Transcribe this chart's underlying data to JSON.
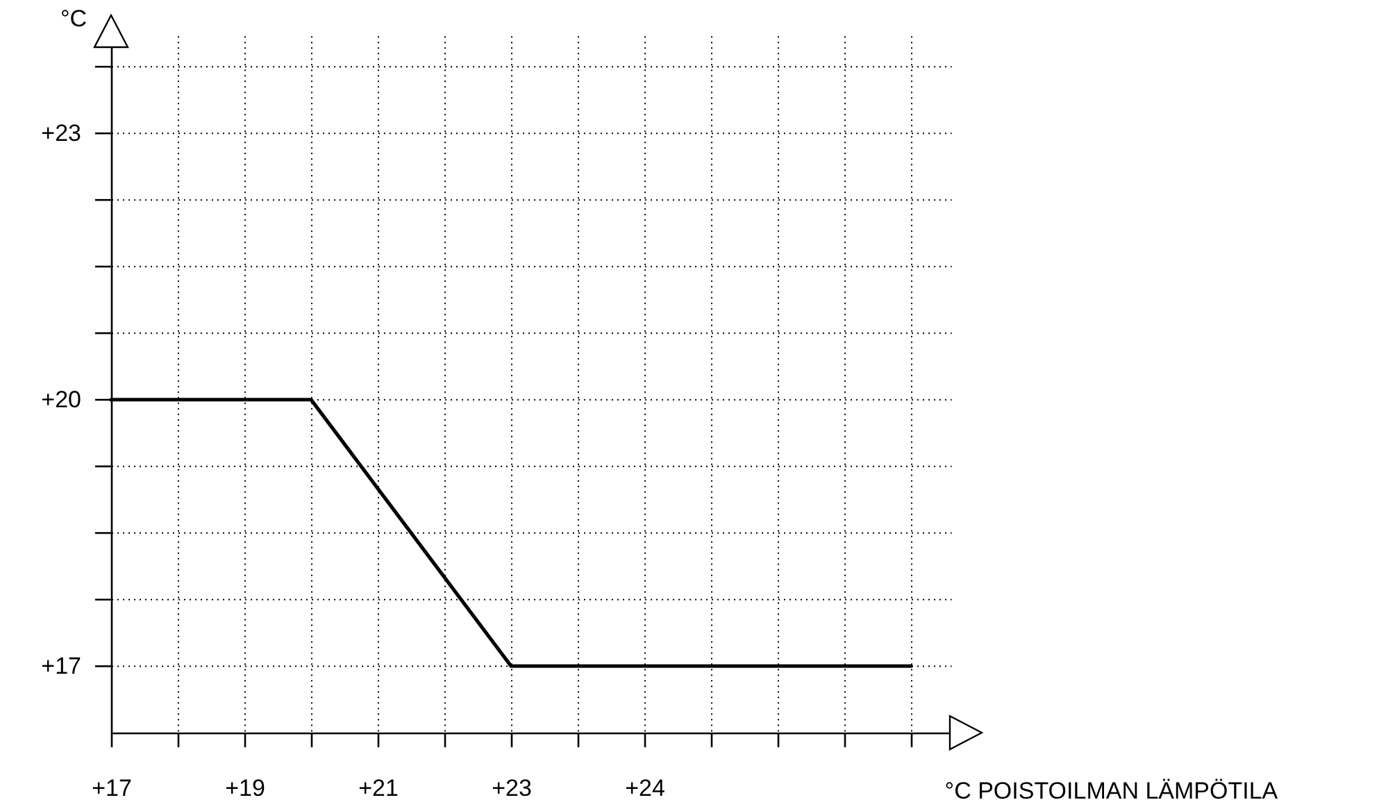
{
  "chart_data": {
    "type": "line",
    "xlabel": "°C POISTOILMAN LÄMPÖTILA",
    "ylabel": "°C",
    "categories": [
      "+17",
      null,
      "+19",
      null,
      "+21",
      null,
      "+23",
      null,
      "+24",
      null,
      null,
      null,
      null
    ],
    "series": [
      {
        "color": "#000000",
        "values": [
          20,
          20,
          20,
          20,
          19,
          18,
          17,
          17,
          17,
          17,
          17,
          17,
          17
        ]
      }
    ],
    "ylim": [
      16.25,
      24.1
    ],
    "yticks": [
      {
        "value": 17,
        "label": "+17"
      },
      {
        "value": 17.75,
        "label": null
      },
      {
        "value": 18.5,
        "label": null
      },
      {
        "value": 19.25,
        "label": null
      },
      {
        "value": 20,
        "label": "+20"
      },
      {
        "value": 20.75,
        "label": null
      },
      {
        "value": 21.5,
        "label": null
      },
      {
        "value": 22.25,
        "label": null
      },
      {
        "value": 23,
        "label": "+23"
      },
      {
        "value": 23.75,
        "label": null
      }
    ],
    "grid": true,
    "line_style": "solid"
  }
}
